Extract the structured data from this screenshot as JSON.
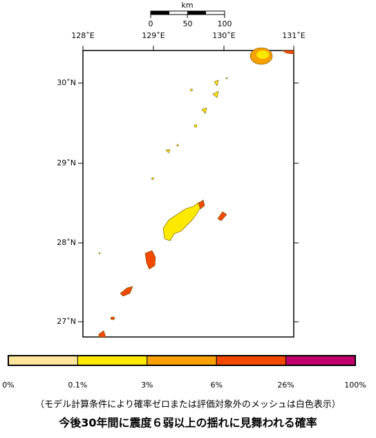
{
  "scale_bar": {
    "unit": "km",
    "ticks": [
      0,
      50,
      100
    ]
  },
  "longitude_labels": [
    "128˚E",
    "129˚E",
    "130˚E",
    "131˚E"
  ],
  "latitude_labels": [
    "30˚N",
    "29˚N",
    "28˚N",
    "27˚N"
  ],
  "legend": {
    "colors": [
      "#fde59b",
      "#fde800",
      "#f8a100",
      "#f44a00",
      "#c2006d"
    ],
    "labels": [
      "0%",
      "0.1%",
      "3%",
      "6%",
      "26%",
      "100%"
    ]
  },
  "note": "（モデル計算条件により確率ゼロまたは評価対象外のメッシュは白色表示）",
  "title": "今後30年間に震度６弱以上の揺れに見舞われる確率"
}
